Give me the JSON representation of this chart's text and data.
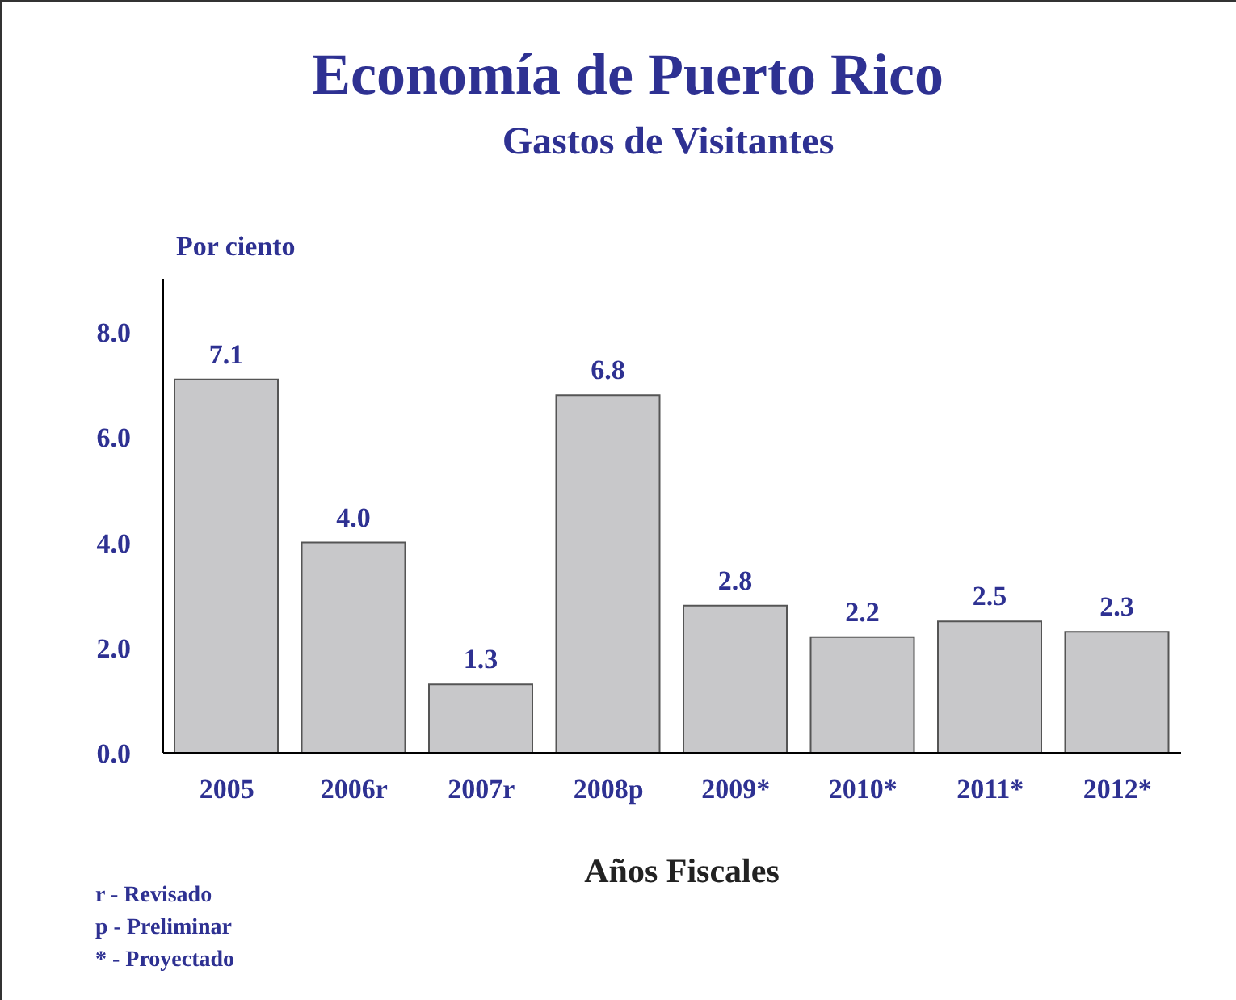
{
  "chart_data": {
    "type": "bar",
    "title": "Economía de Puerto Rico",
    "subtitle": "Gastos de Visitantes",
    "ylabel": "Por ciento",
    "xlabel": "Años Fiscales",
    "categories": [
      "2005",
      "2006r",
      "2007r",
      "2008p",
      "2009*",
      "2010*",
      "2011*",
      "2012*"
    ],
    "values": [
      7.1,
      4.0,
      1.3,
      6.8,
      2.8,
      2.2,
      2.5,
      2.3
    ],
    "value_labels": [
      "7.1",
      "4.0",
      "1.3",
      "6.8",
      "2.8",
      "2.2",
      "2.5",
      "2.3"
    ],
    "color": "#c8c8ca",
    "ylim": [
      0,
      9
    ],
    "yticks": [
      {
        "value": 0,
        "label": "0.0"
      },
      {
        "value": 2,
        "label": "2.0"
      },
      {
        "value": 4,
        "label": "4.0"
      },
      {
        "value": 6,
        "label": "6.0"
      },
      {
        "value": 8,
        "label": "8.0"
      }
    ],
    "grid": false,
    "legend": false,
    "annotations": [
      "r - Revisado",
      "p - Preliminar",
      "* - Proyectado"
    ]
  }
}
